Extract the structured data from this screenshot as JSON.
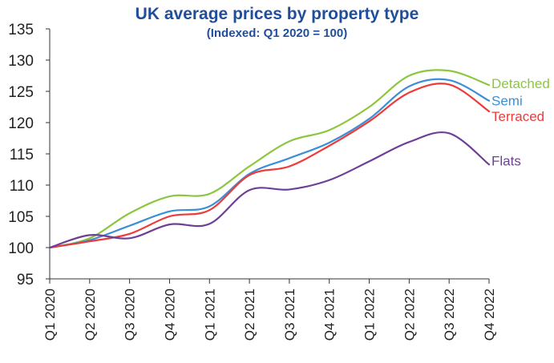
{
  "chart_data": {
    "type": "line",
    "title": "UK average prices by property type",
    "subtitle": "(Indexed: Q1 2020 = 100)",
    "xlabel": "",
    "ylabel": "",
    "ylim": [
      95,
      135
    ],
    "yticks": [
      95,
      100,
      105,
      110,
      115,
      120,
      125,
      130,
      135
    ],
    "grid": false,
    "categories": [
      "Q1 2020",
      "Q2 2020",
      "Q3 2020",
      "Q4 2020",
      "Q1 2021",
      "Q2 2021",
      "Q3 2021",
      "Q4 2021",
      "Q1 2022",
      "Q2 2022",
      "Q3 2022",
      "Q4 2022"
    ],
    "series": [
      {
        "name": "Detached",
        "color": "#8dc63f",
        "values": [
          100,
          101.5,
          105.5,
          108.2,
          108.6,
          113.0,
          117.0,
          118.8,
          122.5,
          127.5,
          128.3,
          126.0
        ]
      },
      {
        "name": "Semi",
        "color": "#3a8fd6",
        "values": [
          100,
          101.2,
          103.5,
          105.8,
          106.6,
          111.8,
          114.3,
          116.8,
          120.6,
          125.8,
          126.8,
          123.5
        ]
      },
      {
        "name": "Terraced",
        "color": "#ee3a3a",
        "values": [
          100,
          101.0,
          102.2,
          105.0,
          106.0,
          111.6,
          113.0,
          116.3,
          120.2,
          124.8,
          126.1,
          121.8
        ]
      },
      {
        "name": "Flats",
        "color": "#6f3f98",
        "values": [
          100,
          102.0,
          101.5,
          103.7,
          103.8,
          109.2,
          109.3,
          110.8,
          113.8,
          116.9,
          118.3,
          113.3
        ]
      }
    ]
  }
}
